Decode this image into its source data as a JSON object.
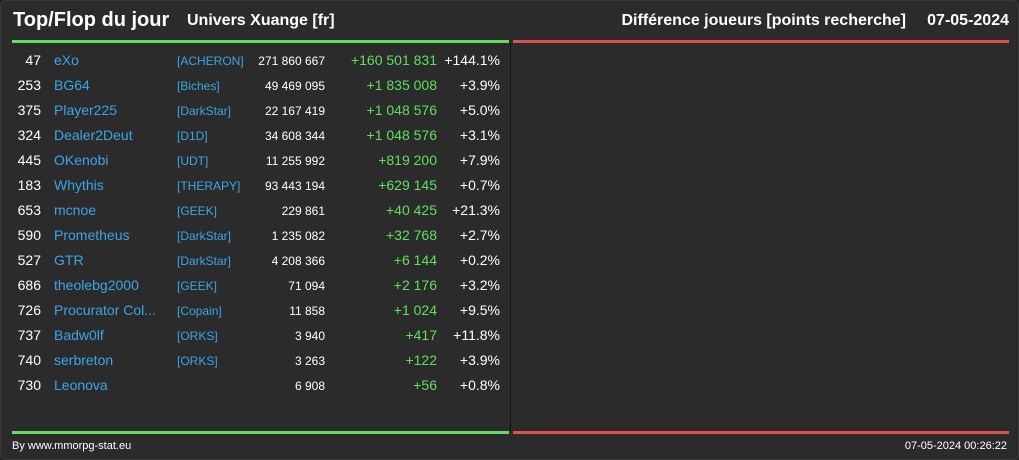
{
  "header": {
    "title": "Top/Flop du jour",
    "server": "Univers Xuange [fr]",
    "metric": "Différence joueurs [points recherche]",
    "date": "07-05-2024"
  },
  "colors": {
    "top_accent": "#5ee05e",
    "flop_accent": "#e05050",
    "link": "#3aa6e8",
    "background": "#2b2b2b"
  },
  "top_rows": [
    {
      "rank": "47",
      "name": "eXo",
      "alliance": "[ACHERON]",
      "points": "271 860 667",
      "diff": "+160 501 831",
      "pct": "+144.1%"
    },
    {
      "rank": "253",
      "name": "BG64",
      "alliance": "[Biches]",
      "points": "49 469 095",
      "diff": "+1 835 008",
      "pct": "+3.9%"
    },
    {
      "rank": "375",
      "name": "Player225",
      "alliance": "[DarkStar]",
      "points": "22 167 419",
      "diff": "+1 048 576",
      "pct": "+5.0%"
    },
    {
      "rank": "324",
      "name": "Dealer2Deut",
      "alliance": "[D1D]",
      "points": "34 608 344",
      "diff": "+1 048 576",
      "pct": "+3.1%"
    },
    {
      "rank": "445",
      "name": "OKenobi",
      "alliance": "[UDT]",
      "points": "11 255 992",
      "diff": "+819 200",
      "pct": "+7.9%"
    },
    {
      "rank": "183",
      "name": "Whythis",
      "alliance": "[THERAPY]",
      "points": "93 443 194",
      "diff": "+629 145",
      "pct": "+0.7%"
    },
    {
      "rank": "653",
      "name": "mcnoe",
      "alliance": "[GEEK]",
      "points": "229 861",
      "diff": "+40 425",
      "pct": "+21.3%"
    },
    {
      "rank": "590",
      "name": "Prometheus",
      "alliance": "[DarkStar]",
      "points": "1 235 082",
      "diff": "+32 768",
      "pct": "+2.7%"
    },
    {
      "rank": "527",
      "name": "GTR",
      "alliance": "[DarkStar]",
      "points": "4 208 366",
      "diff": "+6 144",
      "pct": "+0.2%"
    },
    {
      "rank": "686",
      "name": "theolebg2000",
      "alliance": "[GEEK]",
      "points": "71 094",
      "diff": "+2 176",
      "pct": "+3.2%"
    },
    {
      "rank": "726",
      "name": "Procurator Col...",
      "alliance": "[Copain]",
      "points": "11 858",
      "diff": "+1 024",
      "pct": "+9.5%"
    },
    {
      "rank": "737",
      "name": "Badw0lf",
      "alliance": "[ORKS]",
      "points": "3 940",
      "diff": "+417",
      "pct": "+11.8%"
    },
    {
      "rank": "740",
      "name": "serbreton",
      "alliance": "[ORKS]",
      "points": "3 263",
      "diff": "+122",
      "pct": "+3.9%"
    },
    {
      "rank": "730",
      "name": "Leonova",
      "alliance": "",
      "points": "6 908",
      "diff": "+56",
      "pct": "+0.8%"
    }
  ],
  "footer": {
    "credit": "By www.mmorpg-stat.eu",
    "timestamp": "07-05-2024 00:26:22"
  }
}
